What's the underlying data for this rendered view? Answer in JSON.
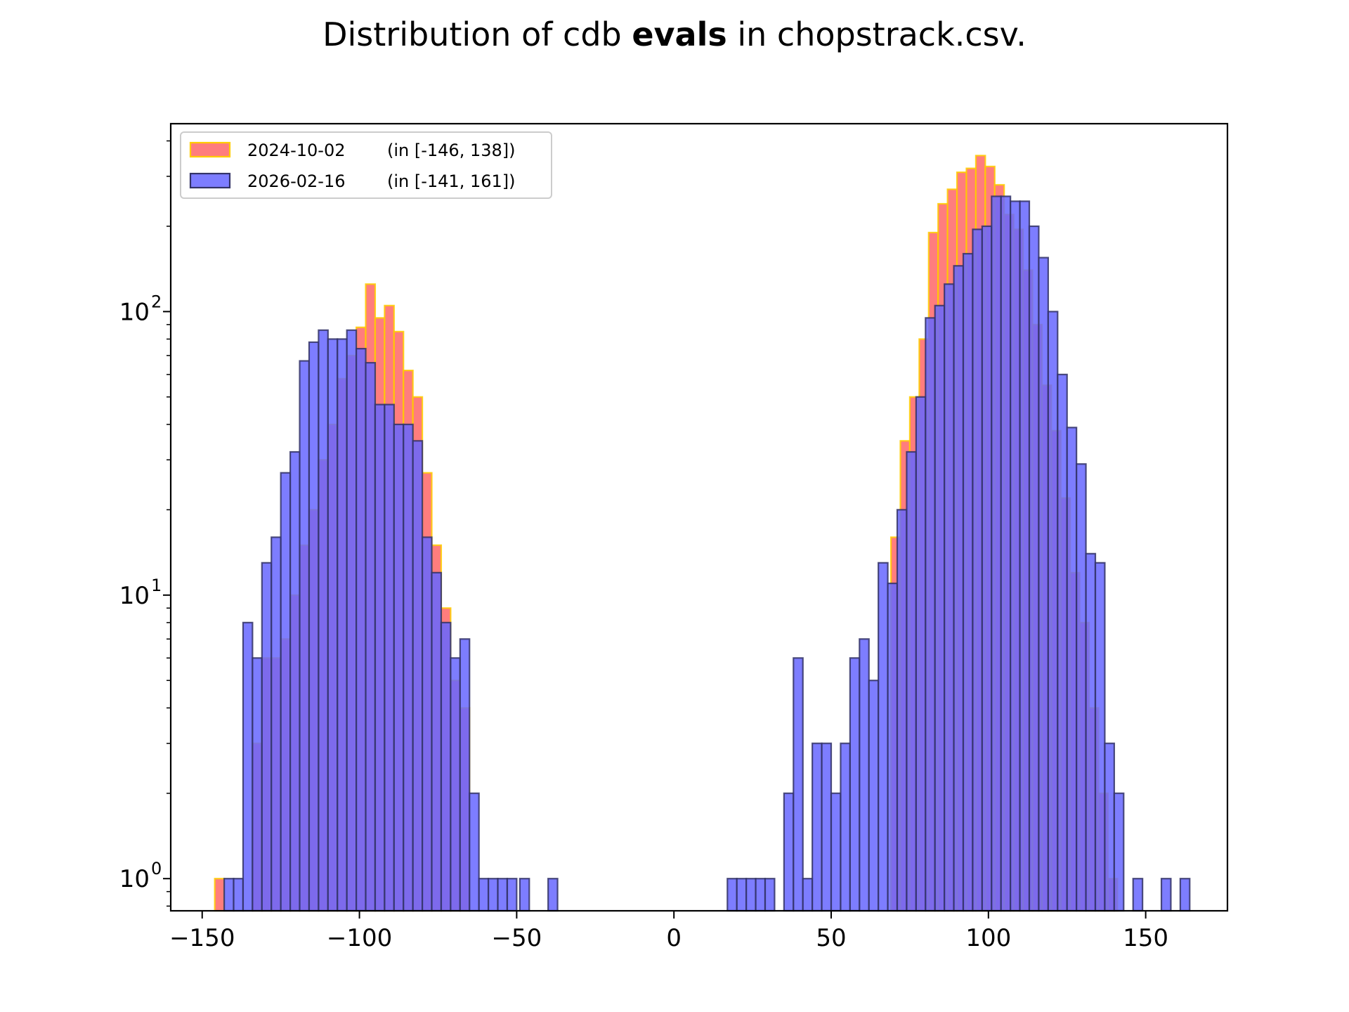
{
  "chart_data": {
    "type": "bar",
    "title_parts": {
      "before": "Distribution of cdb ",
      "bold": "evals",
      "after": " in chopstrack.csv."
    },
    "xlabel": "",
    "ylabel": "",
    "yscale": "log",
    "xlim": [
      -160,
      176
    ],
    "ylim": [
      0.77,
      460
    ],
    "xticks": [
      -150,
      -100,
      -50,
      0,
      50,
      100,
      150
    ],
    "xtick_labels": [
      "−150",
      "−100",
      "−50",
      "0",
      "50",
      "100",
      "150"
    ],
    "yticks": [
      {
        "value": 1,
        "base": "10",
        "exp": "0"
      },
      {
        "value": 10,
        "base": "10",
        "exp": "1"
      },
      {
        "value": 100,
        "base": "10",
        "exp": "2"
      }
    ],
    "legend_position": "top-left",
    "series": [
      {
        "name": "2024-10-02",
        "range_label": "(in [-146, 138])",
        "fill": "#ff6666",
        "edge": "#ffcc00",
        "bins": [
          [
            -146,
            1
          ],
          [
            -134,
            3
          ],
          [
            -131,
            6
          ],
          [
            -128,
            6
          ],
          [
            -125,
            7
          ],
          [
            -122,
            10
          ],
          [
            -119,
            15
          ],
          [
            -116,
            20
          ],
          [
            -113,
            30
          ],
          [
            -110,
            40
          ],
          [
            -107,
            58
          ],
          [
            -104,
            70
          ],
          [
            -101,
            88
          ],
          [
            -98,
            125
          ],
          [
            -95,
            95
          ],
          [
            -92,
            105
          ],
          [
            -89,
            85
          ],
          [
            -86,
            62
          ],
          [
            -83,
            50
          ],
          [
            -80,
            27
          ],
          [
            -77,
            15
          ],
          [
            -74,
            9
          ],
          [
            -71,
            5
          ],
          [
            -68,
            4
          ],
          [
            69,
            16
          ],
          [
            72,
            35
          ],
          [
            75,
            50
          ],
          [
            78,
            80
          ],
          [
            81,
            190
          ],
          [
            84,
            240
          ],
          [
            87,
            270
          ],
          [
            90,
            310
          ],
          [
            93,
            320
          ],
          [
            96,
            355
          ],
          [
            99,
            325
          ],
          [
            102,
            280
          ],
          [
            105,
            220
          ],
          [
            108,
            195
          ],
          [
            111,
            140
          ],
          [
            114,
            90
          ],
          [
            117,
            55
          ],
          [
            120,
            38
          ],
          [
            123,
            22
          ],
          [
            126,
            12
          ],
          [
            129,
            8
          ],
          [
            132,
            4
          ],
          [
            135,
            2
          ],
          [
            138,
            1
          ]
        ]
      },
      {
        "name": "2026-02-16",
        "range_label": "(in [-141, 161])",
        "fill": "#6666ff",
        "edge": "#333366",
        "bins": [
          [
            -143,
            1
          ],
          [
            -140,
            1
          ],
          [
            -137,
            8
          ],
          [
            -134,
            6
          ],
          [
            -131,
            13
          ],
          [
            -128,
            16
          ],
          [
            -125,
            27
          ],
          [
            -122,
            32
          ],
          [
            -119,
            67
          ],
          [
            -116,
            78
          ],
          [
            -113,
            86
          ],
          [
            -110,
            80
          ],
          [
            -107,
            80
          ],
          [
            -104,
            86
          ],
          [
            -101,
            74
          ],
          [
            -98,
            66
          ],
          [
            -95,
            47
          ],
          [
            -92,
            47
          ],
          [
            -89,
            40
          ],
          [
            -86,
            40
          ],
          [
            -83,
            35
          ],
          [
            -80,
            16
          ],
          [
            -77,
            12
          ],
          [
            -74,
            8
          ],
          [
            -71,
            6
          ],
          [
            -68,
            7
          ],
          [
            -65,
            2
          ],
          [
            -62,
            1
          ],
          [
            -59,
            1
          ],
          [
            -56,
            1
          ],
          [
            -53,
            1
          ],
          [
            -49,
            1
          ],
          [
            -40,
            1
          ],
          [
            17,
            1
          ],
          [
            20,
            1
          ],
          [
            23,
            1
          ],
          [
            26,
            1
          ],
          [
            29,
            1
          ],
          [
            35,
            2
          ],
          [
            38,
            6
          ],
          [
            41,
            1
          ],
          [
            44,
            3
          ],
          [
            47,
            3
          ],
          [
            50,
            2
          ],
          [
            53,
            3
          ],
          [
            56,
            6
          ],
          [
            59,
            7
          ],
          [
            62,
            5
          ],
          [
            65,
            13
          ],
          [
            68,
            11
          ],
          [
            71,
            20
          ],
          [
            74,
            32
          ],
          [
            77,
            50
          ],
          [
            80,
            95
          ],
          [
            83,
            105
          ],
          [
            86,
            125
          ],
          [
            89,
            145
          ],
          [
            92,
            160
          ],
          [
            95,
            195
          ],
          [
            98,
            200
          ],
          [
            101,
            255
          ],
          [
            104,
            255
          ],
          [
            107,
            245
          ],
          [
            110,
            245
          ],
          [
            113,
            200
          ],
          [
            116,
            155
          ],
          [
            119,
            100
          ],
          [
            122,
            60
          ],
          [
            125,
            39
          ],
          [
            128,
            29
          ],
          [
            131,
            14
          ],
          [
            134,
            13
          ],
          [
            137,
            3
          ],
          [
            140,
            2
          ],
          [
            146,
            1
          ],
          [
            155,
            1
          ],
          [
            161,
            1
          ]
        ]
      }
    ]
  }
}
